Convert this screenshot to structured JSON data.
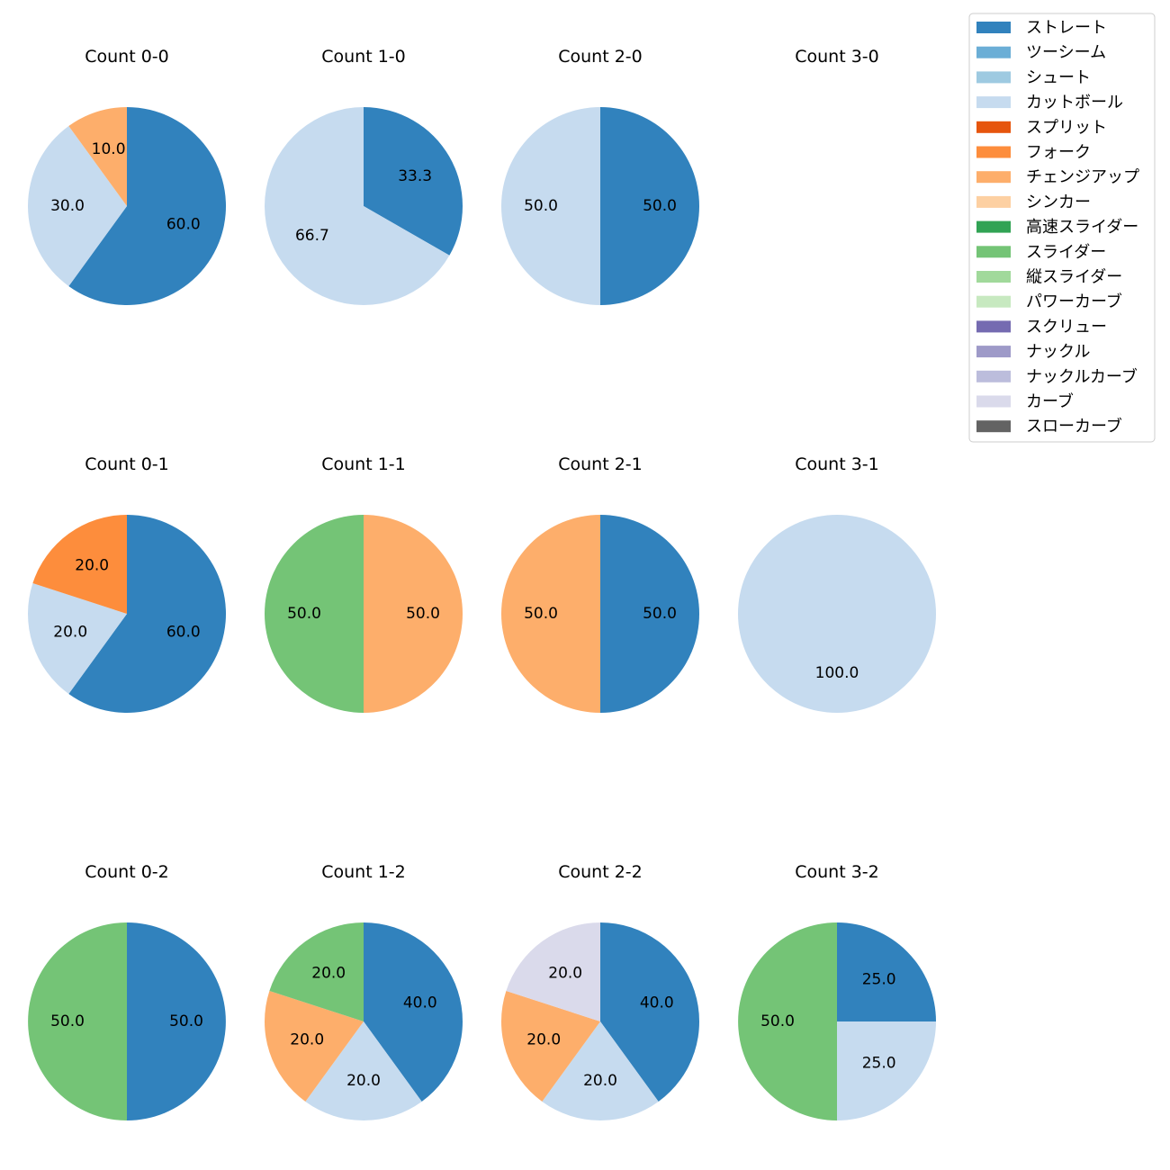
{
  "chart_data": {
    "type": "pie",
    "legend": {
      "placement": "top-right",
      "entries": [
        {
          "name": "ストレート",
          "color": "#3182bd"
        },
        {
          "name": "ツーシーム",
          "color": "#6baed6"
        },
        {
          "name": "シュート",
          "color": "#9ecae1"
        },
        {
          "name": "カットボール",
          "color": "#c6dbef"
        },
        {
          "name": "スプリット",
          "color": "#e6550d"
        },
        {
          "name": "フォーク",
          "color": "#fd8d3c"
        },
        {
          "name": "チェンジアップ",
          "color": "#fdae6b"
        },
        {
          "name": "シンカー",
          "color": "#fdd0a2"
        },
        {
          "name": "高速スライダー",
          "color": "#31a354"
        },
        {
          "name": "スライダー",
          "color": "#74c476"
        },
        {
          "name": "縦スライダー",
          "color": "#a1d99b"
        },
        {
          "name": "パワーカーブ",
          "color": "#c7e9c0"
        },
        {
          "name": "スクリュー",
          "color": "#756bb1"
        },
        {
          "name": "ナックル",
          "color": "#9e9ac8"
        },
        {
          "name": "ナックルカーブ",
          "color": "#bcbddc"
        },
        {
          "name": "カーブ",
          "color": "#dadaeb"
        },
        {
          "name": "スローカーブ",
          "color": "#636363"
        }
      ]
    },
    "charts": [
      {
        "title": "Count 0-0",
        "slices": [
          {
            "pitch": "ストレート",
            "value": 60.0,
            "label": "60.0"
          },
          {
            "pitch": "カットボール",
            "value": 30.0,
            "label": "30.0"
          },
          {
            "pitch": "チェンジアップ",
            "value": 10.0,
            "label": "10.0"
          }
        ]
      },
      {
        "title": "Count 1-0",
        "slices": [
          {
            "pitch": "ストレート",
            "value": 33.3,
            "label": "33.3"
          },
          {
            "pitch": "カットボール",
            "value": 66.7,
            "label": "66.7"
          }
        ]
      },
      {
        "title": "Count 2-0",
        "slices": [
          {
            "pitch": "ストレート",
            "value": 50.0,
            "label": "50.0"
          },
          {
            "pitch": "カットボール",
            "value": 50.0,
            "label": "50.0"
          }
        ]
      },
      {
        "title": "Count 3-0",
        "slices": []
      },
      {
        "title": "Count 0-1",
        "slices": [
          {
            "pitch": "ストレート",
            "value": 60.0,
            "label": "60.0"
          },
          {
            "pitch": "カットボール",
            "value": 20.0,
            "label": "20.0"
          },
          {
            "pitch": "フォーク",
            "value": 20.0,
            "label": "20.0"
          }
        ]
      },
      {
        "title": "Count 1-1",
        "slices": [
          {
            "pitch": "チェンジアップ",
            "value": 50.0,
            "label": "50.0"
          },
          {
            "pitch": "スライダー",
            "value": 50.0,
            "label": "50.0"
          }
        ]
      },
      {
        "title": "Count 2-1",
        "slices": [
          {
            "pitch": "ストレート",
            "value": 50.0,
            "label": "50.0"
          },
          {
            "pitch": "チェンジアップ",
            "value": 50.0,
            "label": "50.0"
          }
        ]
      },
      {
        "title": "Count 3-1",
        "slices": [
          {
            "pitch": "カットボール",
            "value": 100.0,
            "label": "100.0"
          }
        ]
      },
      {
        "title": "Count 0-2",
        "slices": [
          {
            "pitch": "ストレート",
            "value": 50.0,
            "label": "50.0"
          },
          {
            "pitch": "スライダー",
            "value": 50.0,
            "label": "50.0"
          }
        ]
      },
      {
        "title": "Count 1-2",
        "slices": [
          {
            "pitch": "ストレート",
            "value": 40.0,
            "label": "40.0"
          },
          {
            "pitch": "カットボール",
            "value": 20.0,
            "label": "20.0"
          },
          {
            "pitch": "チェンジアップ",
            "value": 20.0,
            "label": "20.0"
          },
          {
            "pitch": "スライダー",
            "value": 20.0,
            "label": "20.0"
          }
        ]
      },
      {
        "title": "Count 2-2",
        "slices": [
          {
            "pitch": "ストレート",
            "value": 40.0,
            "label": "40.0"
          },
          {
            "pitch": "カットボール",
            "value": 20.0,
            "label": "20.0"
          },
          {
            "pitch": "チェンジアップ",
            "value": 20.0,
            "label": "20.0"
          },
          {
            "pitch": "カーブ",
            "value": 20.0,
            "label": "20.0"
          }
        ]
      },
      {
        "title": "Count 3-2",
        "slices": [
          {
            "pitch": "ストレート",
            "value": 25.0,
            "label": "25.0"
          },
          {
            "pitch": "カットボール",
            "value": 25.0,
            "label": "25.0"
          },
          {
            "pitch": "スライダー",
            "value": 50.0,
            "label": "50.0"
          }
        ]
      }
    ]
  }
}
